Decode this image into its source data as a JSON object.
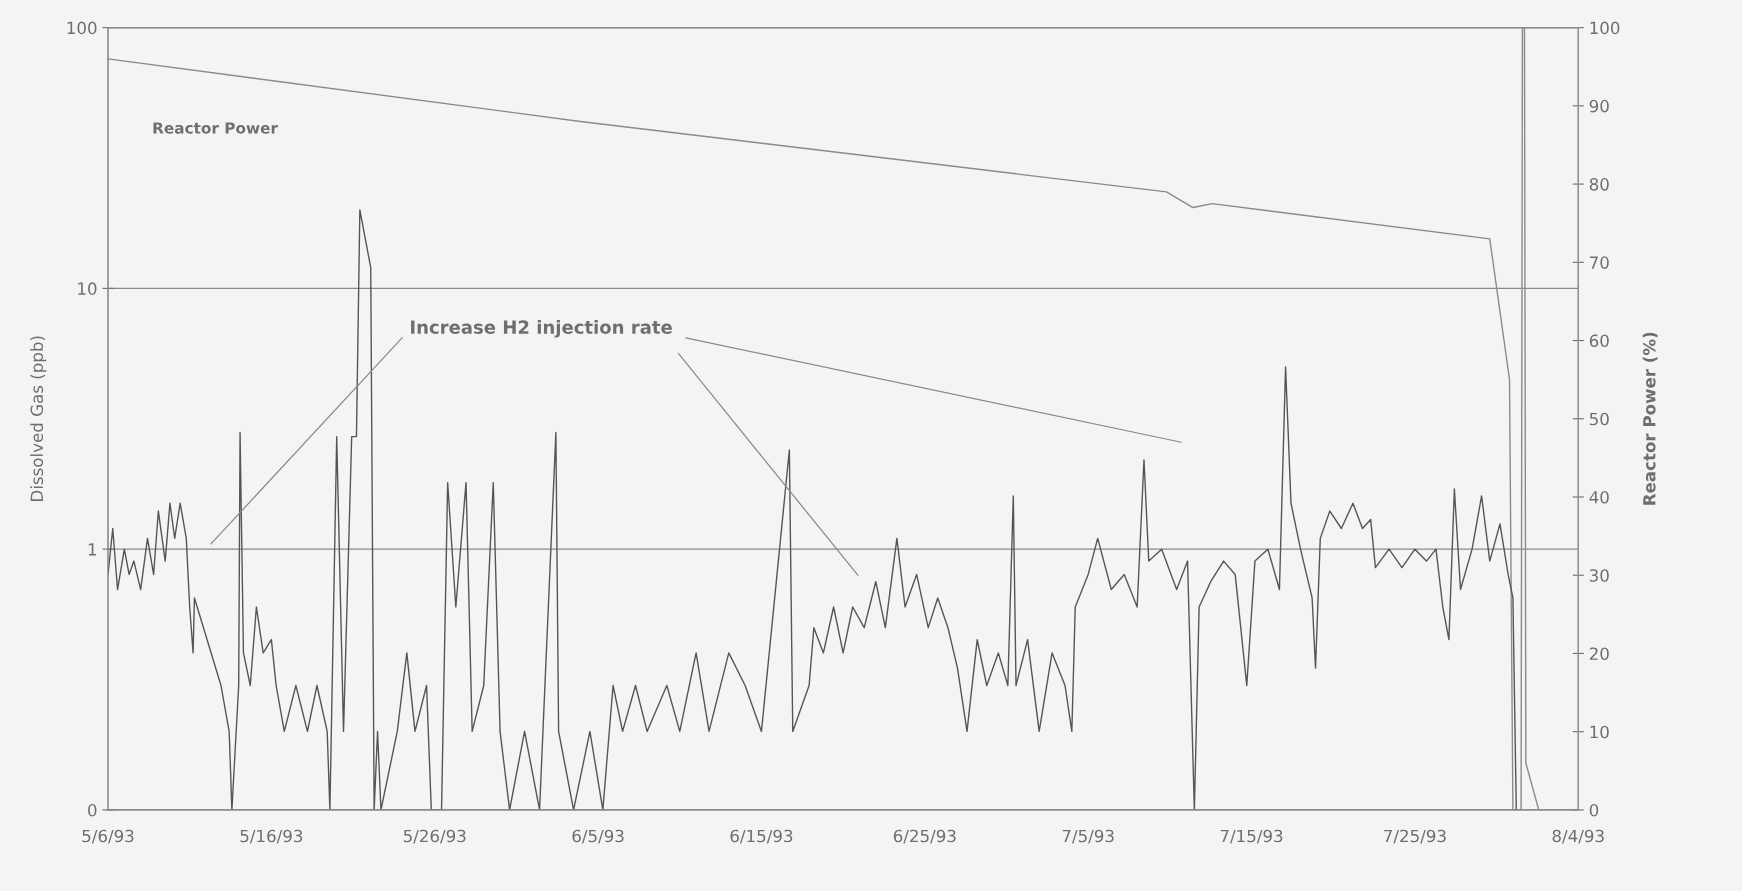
{
  "chart_data": {
    "type": "line",
    "xlabel": null,
    "ylabel": "Dissolved Gas (ppb)",
    "y2label": "Reactor Power (%)",
    "log": "y",
    "grid": "y",
    "legend": false,
    "xlim": [
      "1993-05-06",
      "1993-08-04"
    ],
    "xticks": [
      {
        "value": "1993-05-06",
        "label": "5/6/93"
      },
      {
        "value": "1993-05-16",
        "label": "5/16/93"
      },
      {
        "value": "1993-05-26",
        "label": "5/26/93"
      },
      {
        "value": "1993-06-05",
        "label": "6/5/93"
      },
      {
        "value": "1993-06-15",
        "label": "6/15/93"
      },
      {
        "value": "1993-06-25",
        "label": "6/25/93"
      },
      {
        "value": "1993-07-05",
        "label": "7/5/93"
      },
      {
        "value": "1993-07-15",
        "label": "7/15/93"
      },
      {
        "value": "1993-07-25",
        "label": "7/25/93"
      },
      {
        "value": "1993-08-04",
        "label": "8/4/93"
      }
    ],
    "ylim": [
      0.1,
      100
    ],
    "yticks": [
      {
        "value": 0.1,
        "label": "0"
      },
      1,
      10,
      100
    ],
    "y2lim": [
      0,
      100
    ],
    "y2ticks": [
      0,
      10,
      20,
      30,
      40,
      50,
      60,
      70,
      80,
      90,
      100
    ],
    "annotations": [
      "Increase H2 injection rate"
    ],
    "series": [
      {
        "color": "#555555",
        "x": [
          "1993-05-06T00:00",
          "1993-05-06T07:00",
          "1993-05-06T14:00",
          "1993-05-07T00:00",
          "1993-05-07T07:00",
          "1993-05-07T14:00",
          "1993-05-08T00:00",
          "1993-05-08T10:00",
          "1993-05-08T19:00",
          "1993-05-09T02:00",
          "1993-05-09T12:00",
          "1993-05-09T19:00",
          "1993-05-10T02:00",
          "1993-05-10T10:00",
          "1993-05-10T19:00",
          "1993-05-11T00:00",
          "1993-05-11T05:00",
          "1993-05-11T07:00",
          "1993-05-12T22:00",
          "1993-05-13T10:00",
          "1993-05-13T14:00",
          "1993-05-14T00:00",
          "1993-05-14T02:00",
          "1993-05-14T07:00",
          "1993-05-14T17:00",
          "1993-05-15T02:00",
          "1993-05-15T12:00",
          "1993-05-16T00:00",
          "1993-05-16T07:00",
          "1993-05-16T19:00",
          "1993-05-17T12:00",
          "1993-05-18T05:00",
          "1993-05-18T19:00",
          "1993-05-19T10:00",
          "1993-05-19T14:00",
          "1993-05-20T00:00",
          "1993-05-20T10:00",
          "1993-05-20T22:00",
          "1993-05-21T05:00",
          "1993-05-21T10:00",
          "1993-05-22T02:00",
          "1993-05-22T07:00",
          "1993-05-22T12:00",
          "1993-05-22T17:00",
          "1993-05-23T17:00",
          "1993-05-24T07:00",
          "1993-05-24T19:00",
          "1993-05-25T12:00",
          "1993-05-25T19:00",
          "1993-05-26T10:00",
          "1993-05-26T19:00",
          "1993-05-27T07:00",
          "1993-05-27T22:00",
          "1993-05-28T07:00",
          "1993-05-29T00:00",
          "1993-05-29T14:00",
          "1993-05-30T00:00",
          "1993-05-30T14:00",
          "1993-05-31T12:00",
          "1993-06-01T10:00",
          "1993-06-02T10:00",
          "1993-06-02T14:00",
          "1993-06-03T12:00",
          "1993-06-04T12:00",
          "1993-06-05T07:00",
          "1993-06-05T22:00",
          "1993-06-06T12:00",
          "1993-06-07T07:00",
          "1993-06-08T00:00",
          "1993-06-09T05:00",
          "1993-06-10T00:00",
          "1993-06-11T00:00",
          "1993-06-11T19:00",
          "1993-06-13T00:00",
          "1993-06-14T00:00",
          "1993-06-15T00:00",
          "1993-06-16T17:00",
          "1993-06-16T22:00",
          "1993-06-17T22:00",
          "1993-06-18T05:00",
          "1993-06-18T19:00",
          "1993-06-19T10:00",
          "1993-06-20T00:00",
          "1993-06-20T14:00",
          "1993-06-21T07:00",
          "1993-06-22T00:00",
          "1993-06-22T14:00",
          "1993-06-23T07:00",
          "1993-06-23T19:00",
          "1993-06-24T12:00",
          "1993-06-25T05:00",
          "1993-06-25T19:00",
          "1993-06-26T10:00",
          "1993-06-27T00:00",
          "1993-06-27T14:00",
          "1993-06-28T05:00",
          "1993-06-28T19:00",
          "1993-06-29T12:00",
          "1993-06-30T02:00",
          "1993-06-30T10:00",
          "1993-06-30T14:00",
          "1993-07-01T07:00",
          "1993-07-02T00:00",
          "1993-07-02T19:00",
          "1993-07-03T14:00",
          "1993-07-04T00:00",
          "1993-07-04T05:00",
          "1993-07-05T00:00",
          "1993-07-05T14:00",
          "1993-07-06T10:00",
          "1993-07-07T05:00",
          "1993-07-08T00:00",
          "1993-07-08T10:00",
          "1993-07-08T17:00",
          "1993-07-09T12:00",
          "1993-07-10T10:00",
          "1993-07-11T02:00",
          "1993-07-11T12:00",
          "1993-07-11T19:00",
          "1993-07-12T12:00",
          "1993-07-13T07:00",
          "1993-07-14T00:00",
          "1993-07-14T17:00",
          "1993-07-15T05:00",
          "1993-07-16T00:00",
          "1993-07-16T17:00",
          "1993-07-17T02:00",
          "1993-07-17T10:00",
          "1993-07-18T00:00",
          "1993-07-18T17:00",
          "1993-07-18T22:00",
          "1993-07-19T05:00",
          "1993-07-19T19:00",
          "1993-07-20T12:00",
          "1993-07-21T05:00",
          "1993-07-21T19:00",
          "1993-07-22T07:00",
          "1993-07-22T14:00",
          "1993-07-23T10:00",
          "1993-07-24T05:00",
          "1993-07-25T00:00",
          "1993-07-25T17:00",
          "1993-07-26T07:00",
          "1993-07-26T17:00",
          "1993-07-27T02:00",
          "1993-07-27T10:00",
          "1993-07-27T19:00",
          "1993-07-28T12:00",
          "1993-07-29T02:00",
          "1993-07-29T14:00",
          "1993-07-30T05:00",
          "1993-07-30T17:00",
          "1993-07-31T00:00",
          "1993-07-31T05:00"
        ],
        "values": [
          0.8,
          1.2,
          0.7,
          1.0,
          0.8,
          0.9,
          0.7,
          1.1,
          0.8,
          1.4,
          0.9,
          1.5,
          1.1,
          1.5,
          1.1,
          0.6,
          0.4,
          0.65,
          0.3,
          0.2,
          0.1,
          0.3,
          2.8,
          0.4,
          0.3,
          0.6,
          0.4,
          0.45,
          0.3,
          0.2,
          0.3,
          0.2,
          0.3,
          0.2,
          0.1,
          2.7,
          0.2,
          2.7,
          2.7,
          20,
          12,
          0.1,
          0.2,
          0.1,
          0.2,
          0.4,
          0.2,
          0.3,
          0.1,
          0.1,
          1.8,
          0.6,
          1.8,
          0.2,
          0.3,
          1.8,
          0.2,
          0.1,
          0.2,
          0.1,
          2.8,
          0.2,
          0.1,
          0.2,
          0.1,
          0.3,
          0.2,
          0.3,
          0.2,
          0.3,
          0.2,
          0.4,
          0.2,
          0.4,
          0.3,
          0.2,
          2.4,
          0.2,
          0.3,
          0.5,
          0.4,
          0.6,
          0.4,
          0.6,
          0.5,
          0.75,
          0.5,
          1.1,
          0.6,
          0.8,
          0.5,
          0.65,
          0.5,
          0.35,
          0.2,
          0.45,
          0.3,
          0.4,
          0.3,
          1.6,
          0.3,
          0.45,
          0.2,
          0.4,
          0.3,
          0.2,
          0.6,
          0.8,
          1.1,
          0.7,
          0.8,
          0.6,
          2.2,
          0.9,
          1.0,
          0.7,
          0.9,
          0.1,
          0.6,
          0.75,
          0.9,
          0.8,
          0.3,
          0.9,
          1.0,
          0.7,
          5.0,
          1.5,
          1.0,
          0.65,
          0.35,
          1.1,
          1.4,
          1.2,
          1.5,
          1.2,
          1.3,
          0.85,
          1.0,
          0.85,
          1.0,
          0.9,
          1.0,
          0.6,
          0.45,
          1.7,
          0.7,
          1.0,
          1.6,
          0.9,
          1.25,
          0.8,
          0.65,
          0.1
        ]
      },
      {
        "name": "Reactor Power",
        "axis": "y2",
        "color": "#8a8a8a",
        "x": [
          "1993-05-06T00:00",
          "1993-06-03T22:00",
          "1993-07-09T19:00",
          "1993-07-11T10:00",
          "1993-07-12T14:00",
          "1993-07-29T14:00",
          "1993-07-30T19:00",
          "1993-07-31T00:00",
          "1993-07-31T12:00",
          "1993-07-31T14:00",
          "1993-07-31T17:00",
          "1993-07-31T19:00",
          "1993-08-01T14:00"
        ],
        "values": [
          96,
          88,
          79,
          77,
          77.5,
          73,
          55,
          0,
          0,
          100,
          100,
          6,
          0
        ]
      }
    ]
  }
}
